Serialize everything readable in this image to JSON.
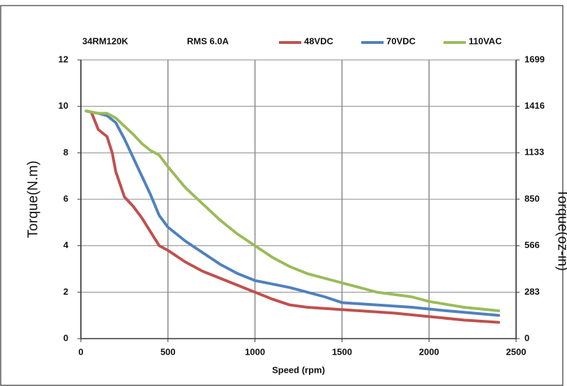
{
  "chart_data": {
    "type": "line",
    "title": "34RM120K",
    "subtitle": "RMS 6.0A",
    "x_label": "Speed (rpm)",
    "y_label": "Torque(N.m)",
    "y2_label": "Torque(oz-in)",
    "xlim": [
      0,
      2500
    ],
    "xticks": [
      0,
      500,
      1000,
      1500,
      2000,
      2500
    ],
    "ylim": [
      0,
      12
    ],
    "yticks": [
      0,
      2,
      4,
      6,
      8,
      10,
      12
    ],
    "y2lim": [
      0,
      1699
    ],
    "y2ticks": [
      0,
      283,
      566,
      850,
      1133,
      1416,
      1699
    ],
    "grid": true,
    "legend": "top",
    "series": [
      {
        "name": "48VDC",
        "color": "#c0504d",
        "x": [
          30,
          60,
          100,
          150,
          180,
          200,
          250,
          300,
          350,
          400,
          450,
          500,
          600,
          700,
          800,
          900,
          1000,
          1100,
          1200,
          1300,
          1500,
          1800,
          2000,
          2200,
          2400
        ],
        "values": [
          9.8,
          9.75,
          9.0,
          8.7,
          8.0,
          7.2,
          6.1,
          5.7,
          5.2,
          4.6,
          4.0,
          3.8,
          3.3,
          2.9,
          2.6,
          2.3,
          2.0,
          1.7,
          1.45,
          1.35,
          1.25,
          1.1,
          0.95,
          0.8,
          0.7
        ]
      },
      {
        "name": "70VDC",
        "color": "#4f81bd",
        "x": [
          30,
          100,
          150,
          200,
          250,
          300,
          350,
          400,
          450,
          500,
          600,
          700,
          800,
          900,
          1000,
          1200,
          1400,
          1500,
          1700,
          1900,
          2100,
          2400
        ],
        "values": [
          9.8,
          9.7,
          9.6,
          9.3,
          8.6,
          7.8,
          7.0,
          6.2,
          5.3,
          4.8,
          4.2,
          3.7,
          3.2,
          2.8,
          2.5,
          2.2,
          1.8,
          1.55,
          1.45,
          1.35,
          1.2,
          1.0
        ]
      },
      {
        "name": "110VAC",
        "color": "#9bbb59",
        "x": [
          30,
          100,
          150,
          200,
          300,
          350,
          400,
          450,
          500,
          600,
          700,
          800,
          900,
          1000,
          1100,
          1200,
          1300,
          1500,
          1700,
          1900,
          2000,
          2200,
          2400
        ],
        "values": [
          9.8,
          9.7,
          9.7,
          9.5,
          8.8,
          8.4,
          8.1,
          7.9,
          7.4,
          6.5,
          5.8,
          5.1,
          4.5,
          4.0,
          3.5,
          3.1,
          2.8,
          2.4,
          2.0,
          1.8,
          1.6,
          1.35,
          1.2
        ]
      }
    ]
  }
}
